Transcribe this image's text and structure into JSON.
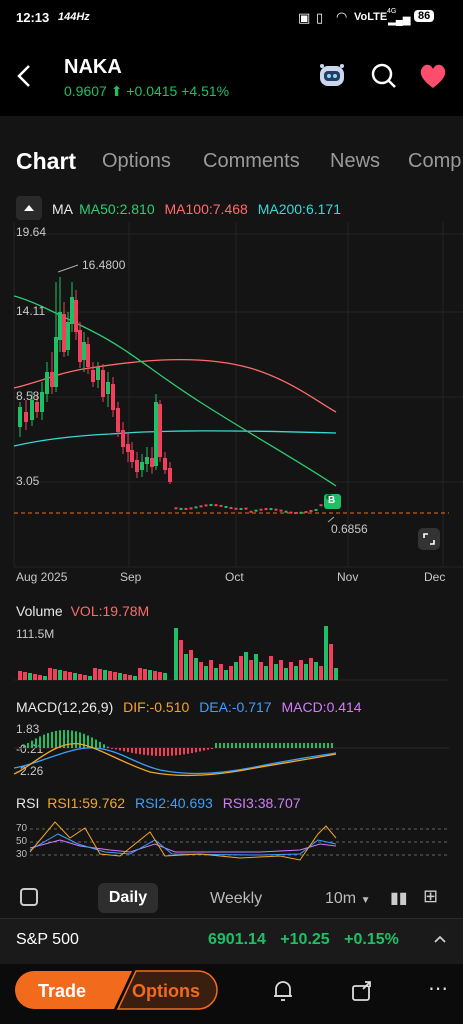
{
  "status": {
    "time": "12:13",
    "refresh": "144Hz",
    "network": "VoLTE",
    "net_type": "4G",
    "battery": "86"
  },
  "header": {
    "ticker": "NAKA",
    "price": "0.9607",
    "change": "+0.0415",
    "change_pct": "+4.51%"
  },
  "tabs": [
    "Chart",
    "Options",
    "Comments",
    "News",
    "Comp"
  ],
  "ma": {
    "label": "MA",
    "ma50": "MA50:2.810",
    "ma100": "MA100:7.468",
    "ma200": "MA200:6.171"
  },
  "price_axis": {
    "y1": "19.64",
    "y2": "14.11",
    "y3": "8.58",
    "y4": "3.05"
  },
  "annotations": {
    "high": "16.4800",
    "low": "0.6856",
    "badge": "B"
  },
  "x_axis": [
    "Aug 2025",
    "Sep",
    "Oct",
    "Nov",
    "Dec"
  ],
  "volume": {
    "title": "Volume",
    "value": "VOL:19.78M",
    "max": "111.5M"
  },
  "macd": {
    "title": "MACD(12,26,9)",
    "dif": "DIF:-0.510",
    "dea": "DEA:-0.717",
    "macd": "MACD:0.414",
    "t1": "1.83",
    "t2": "-0.21",
    "t3": "-2.26"
  },
  "rsi": {
    "title": "RSI",
    "rsi1": "RSI1:59.762",
    "rsi2": "RSI2:40.693",
    "rsi3": "RSI3:38.707",
    "l70": "70",
    "l50": "50",
    "l30": "30"
  },
  "period": {
    "daily": "Daily",
    "weekly": "Weekly",
    "interval": "10m"
  },
  "index": {
    "name": "S&P 500",
    "value": "6901.14",
    "change": "+10.25",
    "pct": "+0.15%"
  },
  "actions": {
    "trade": "Trade",
    "options": "Options"
  },
  "colors": {
    "up": "#1fbf66",
    "down": "#f2405c",
    "ma50": "#2ecc71",
    "ma100": "#ff6b6b",
    "ma200": "#3ad8d8",
    "accent": "#f26b1d",
    "dif": "#f5a623",
    "dea": "#3aa0ff",
    "macd": "#d47bff"
  }
}
